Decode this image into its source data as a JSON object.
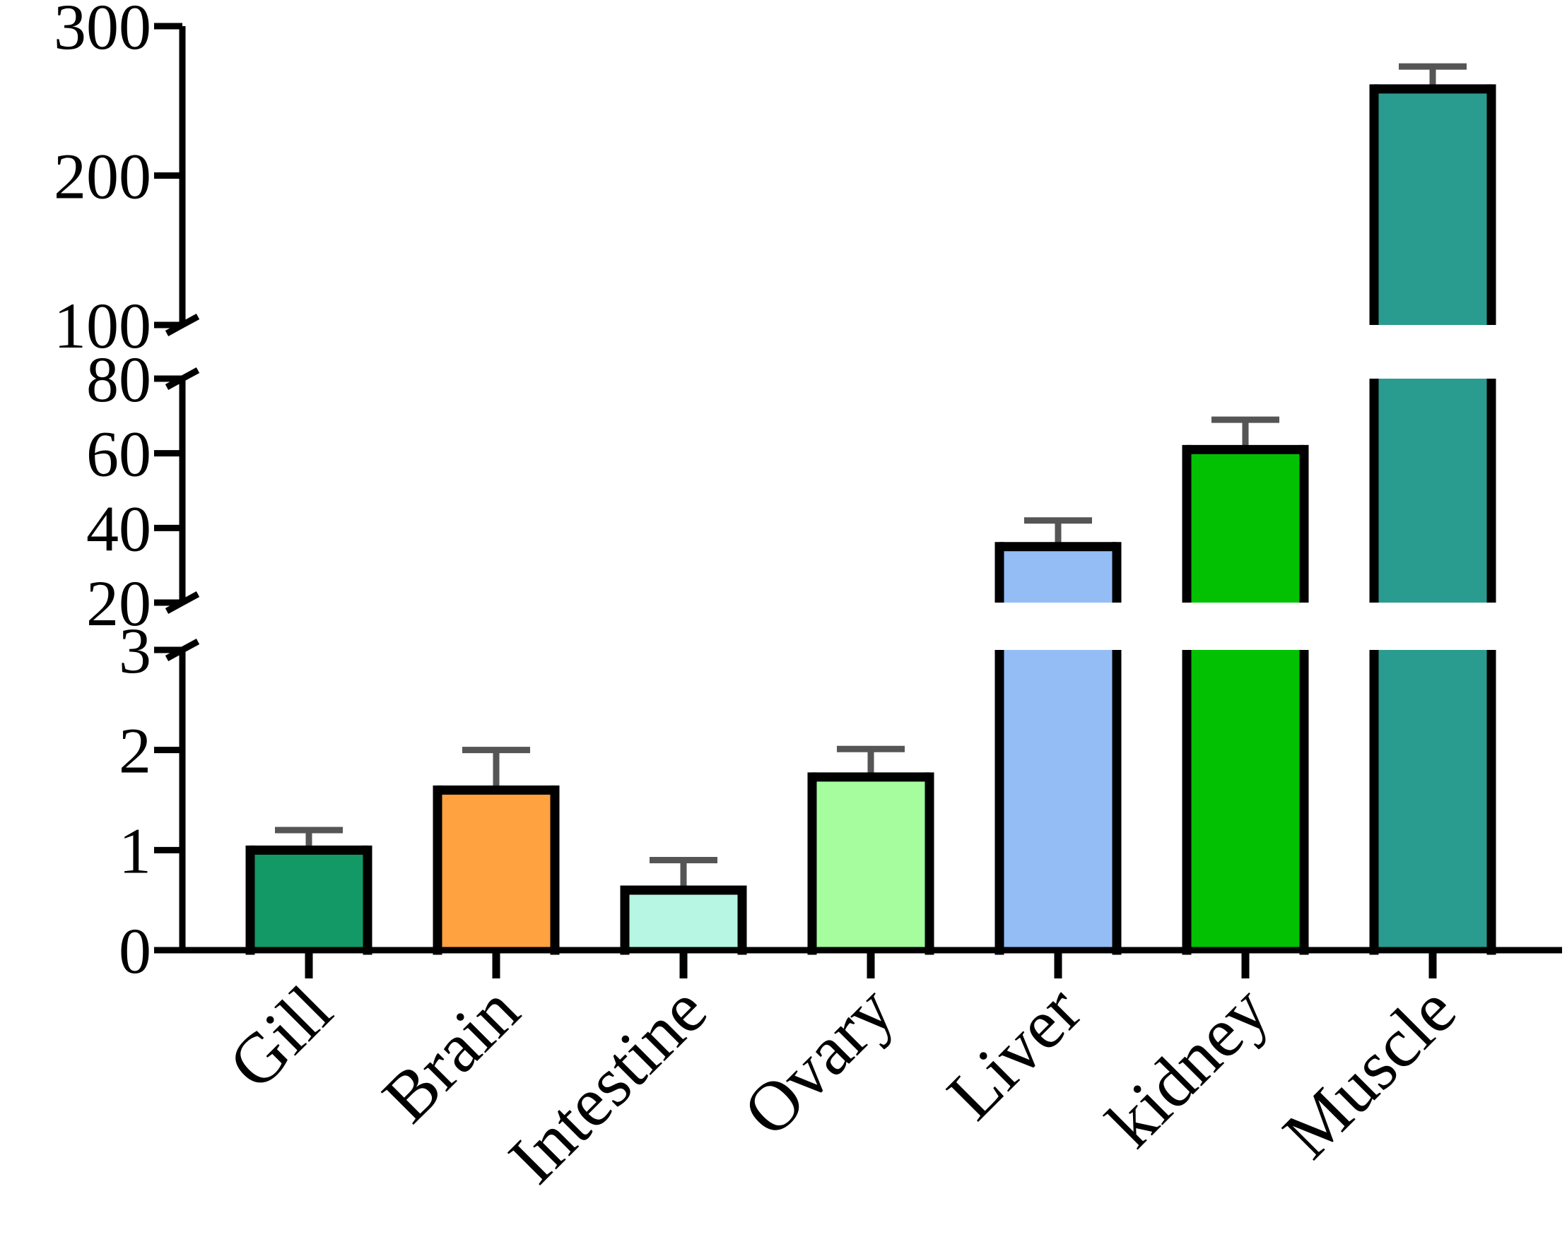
{
  "chart_data": {
    "type": "bar",
    "title": "",
    "xlabel": "",
    "ylabel": "",
    "categories": [
      "Gill",
      "Brain",
      "Intestine",
      "Ovary",
      "Liver",
      "kidney",
      "Muscle"
    ],
    "series": [
      {
        "values": [
          1.0,
          1.6,
          0.6,
          1.73,
          35,
          61,
          258
        ],
        "error": [
          0.2,
          0.4,
          0.3,
          0.28,
          7,
          8,
          15
        ],
        "colors": [
          "#139966",
          "#ffa23f",
          "#b6f6e3",
          "#a5fd9e",
          "#94bdf6",
          "#02c102",
          "#2a9b8f"
        ]
      }
    ],
    "y_axis": {
      "broken": true,
      "segments": [
        {
          "range": [
            0,
            3
          ],
          "ticks": [
            0,
            1,
            2,
            3
          ]
        },
        {
          "range": [
            20,
            80
          ],
          "ticks": [
            20,
            40,
            60,
            80
          ]
        },
        {
          "range": [
            100,
            300
          ],
          "ticks": [
            100,
            200,
            300
          ]
        }
      ]
    },
    "grid": false,
    "legend": "none"
  }
}
